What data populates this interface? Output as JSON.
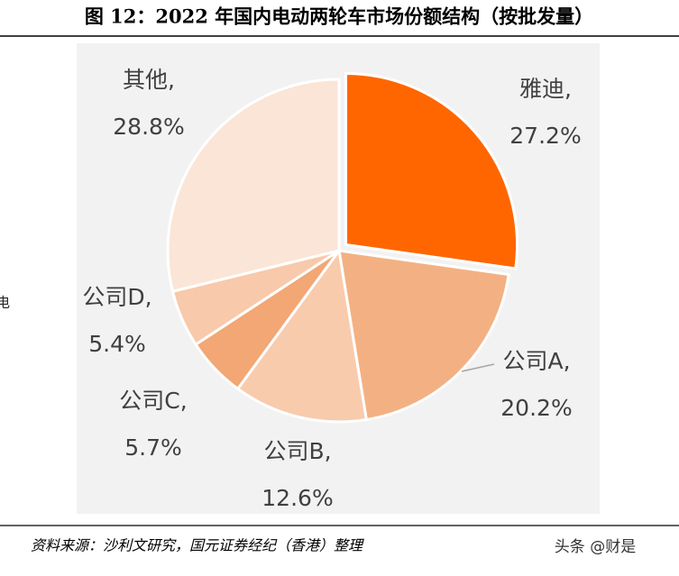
{
  "chart_data": {
    "type": "pie",
    "title": "图 12：2022 年国内电动两轮车市场份额结构（按批发量）",
    "categories": [
      "雅迪,",
      "公司A,",
      "公司B,",
      "公司C,",
      "公司D,",
      "其他,"
    ],
    "values": [
      27.2,
      20.2,
      12.6,
      5.7,
      5.4,
      28.8
    ],
    "value_labels": [
      "27.2%",
      "20.2%",
      "12.6%",
      "5.7%",
      "5.4%",
      "28.8%"
    ],
    "colors": [
      "#ff6600",
      "#f3b183",
      "#f8cbad",
      "#f2a774",
      "#f8c9aa",
      "#fbe5d6"
    ],
    "source": "资料来源：沙利文研究，国元证券经纪（香港）整理",
    "watermark": "头条 @财是",
    "side_text": "电"
  }
}
